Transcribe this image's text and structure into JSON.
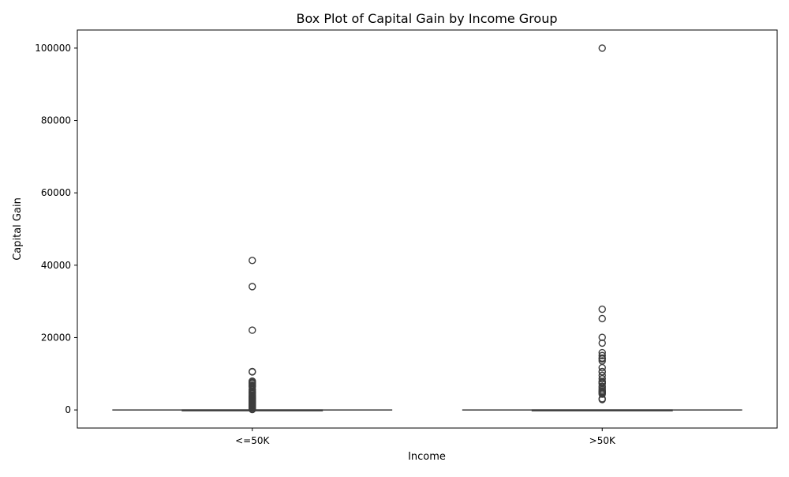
{
  "chart_data": {
    "type": "box",
    "title": "Box Plot of Capital Gain by Income Group",
    "xlabel": "Income",
    "ylabel": "Capital Gain",
    "categories": [
      "<=50K",
      ">50K"
    ],
    "ylim": [
      -5000,
      105000
    ],
    "yticks": [
      0,
      20000,
      40000,
      60000,
      80000,
      100000
    ],
    "grid": false,
    "box_color": "#3d3d3d",
    "boxes": [
      {
        "category": "<=50K",
        "min": 0,
        "q1": 0,
        "median": 0,
        "q3": 0,
        "max": 0,
        "outliers": [
          41310,
          34095,
          22040,
          10605,
          10520,
          7978,
          7688,
          7443,
          7298,
          6849,
          6723,
          6497,
          6418,
          5721,
          5455,
          5060,
          4865,
          4650,
          4416,
          4101,
          3818,
          3674,
          3464,
          3411,
          3325,
          3103,
          2977,
          2907,
          2829,
          2653,
          2463,
          2354,
          2176,
          2105,
          2036,
          1848,
          1639,
          1506,
          1424,
          1173,
          1086,
          991,
          914,
          594,
          401,
          114
        ]
      },
      {
        "category": ">50K",
        "min": 0,
        "q1": 0,
        "median": 0,
        "q3": 0,
        "max": 0,
        "outliers": [
          99999,
          27828,
          25236,
          20051,
          18481,
          15831,
          15024,
          14344,
          14084,
          13550,
          11678,
          10605,
          10520,
          9562,
          8614,
          7896,
          7688,
          7430,
          7298,
          6514,
          6097,
          5556,
          5178,
          5013,
          4787,
          4687,
          4386,
          3103,
          2885
        ]
      }
    ]
  }
}
